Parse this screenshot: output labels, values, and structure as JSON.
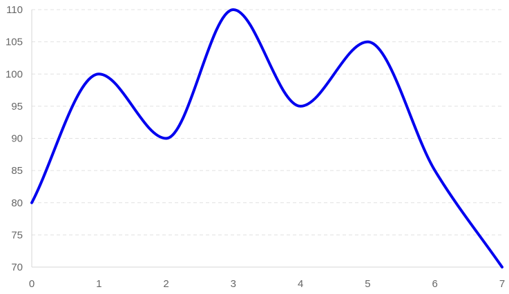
{
  "chart_data": {
    "type": "line",
    "title": "",
    "xlabel": "",
    "ylabel": "",
    "x": [
      0,
      1,
      2,
      3,
      4,
      5,
      6,
      7
    ],
    "xlim": [
      0,
      7
    ],
    "ylim": [
      70,
      110
    ],
    "x_ticks": [
      0,
      1,
      2,
      3,
      4,
      5,
      6,
      7
    ],
    "y_ticks": [
      70,
      75,
      80,
      85,
      90,
      95,
      100,
      105,
      110
    ],
    "grid": true,
    "grid_style": "dashed horizontal",
    "legend": "none",
    "smooth": true,
    "series": [
      {
        "values": [
          80,
          100,
          90,
          110,
          95,
          105,
          85,
          70
        ],
        "color": "#0000ee"
      }
    ]
  }
}
